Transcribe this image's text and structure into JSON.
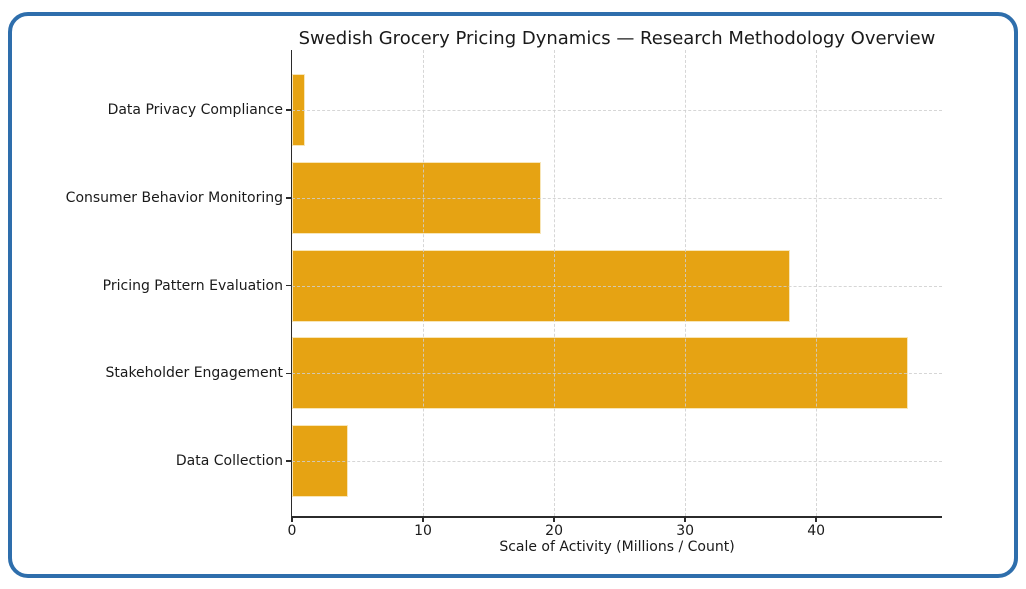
{
  "chart_data": {
    "type": "bar",
    "orientation": "horizontal",
    "title": "Swedish Grocery Pricing Dynamics — Research Methodology Overview",
    "xlabel": "Scale of Activity (Millions / Count)",
    "ylabel": "",
    "categories": [
      "Data Privacy Compliance",
      "Consumer Behavior Monitoring",
      "Pricing Pattern Evaluation",
      "Stakeholder Engagement",
      "Data Collection"
    ],
    "values": [
      1,
      19,
      38,
      47,
      4.3
    ],
    "xticks": [
      0,
      10,
      20,
      30,
      40
    ],
    "xlim": [
      0,
      49.6
    ],
    "grid": true,
    "legend": false,
    "colors": {
      "bar_fill": "#E6A313",
      "bar_edge": "#F8E6B8",
      "grid": "#cfcfcf",
      "axis": "#2b2b2b",
      "text": "#1a1a1a",
      "frame_border": "#2E6EAC",
      "background": "#ffffff"
    }
  }
}
